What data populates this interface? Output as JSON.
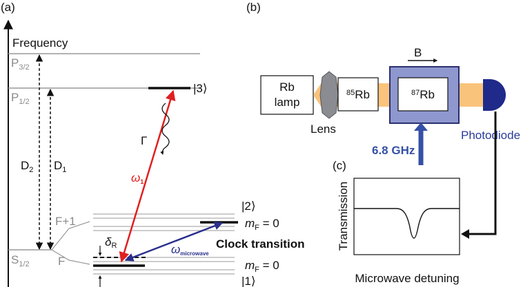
{
  "panel_a": {
    "label": "(a)",
    "axis_label": "Frequency",
    "p32": {
      "symbol": "P",
      "sub": "3/2"
    },
    "p12": {
      "symbol": "P",
      "sub": "1/2"
    },
    "s12": {
      "symbol": "S",
      "sub": "1/2"
    },
    "d2": {
      "symbol": "D",
      "sub": "2"
    },
    "d1": {
      "symbol": "D",
      "sub": "1"
    },
    "state3": "|3⟩",
    "state2": "|2⟩",
    "state1": "|1⟩",
    "gamma": "Γ",
    "omega1": {
      "symbol": "ω",
      "sub": "1"
    },
    "f_upper": "F+1",
    "f_lower": "F",
    "mf_upper": {
      "symbol": "m",
      "sub": "F",
      "rest": " = 0"
    },
    "mf_lower": {
      "symbol": "m",
      "sub": "F",
      "rest": " = 0"
    },
    "delta": {
      "symbol": "δ",
      "sub": "R"
    },
    "omega_mw": {
      "symbol": "ω",
      "sub": "microwave"
    },
    "clock": "Clock transition"
  },
  "panel_b": {
    "label": "(b)",
    "field": "B",
    "lamp": [
      "Rb",
      "lamp"
    ],
    "lens": "Lens",
    "cell85": {
      "sup": "85",
      "text": "Rb"
    },
    "cell87": {
      "sup": "87",
      "text": "Rb"
    },
    "microwave": "6.8 GHz",
    "detector": "Photodiode"
  },
  "panel_c": {
    "label": "(c)",
    "y_label": "Transmission",
    "x_label": "Microwave detuning"
  }
}
